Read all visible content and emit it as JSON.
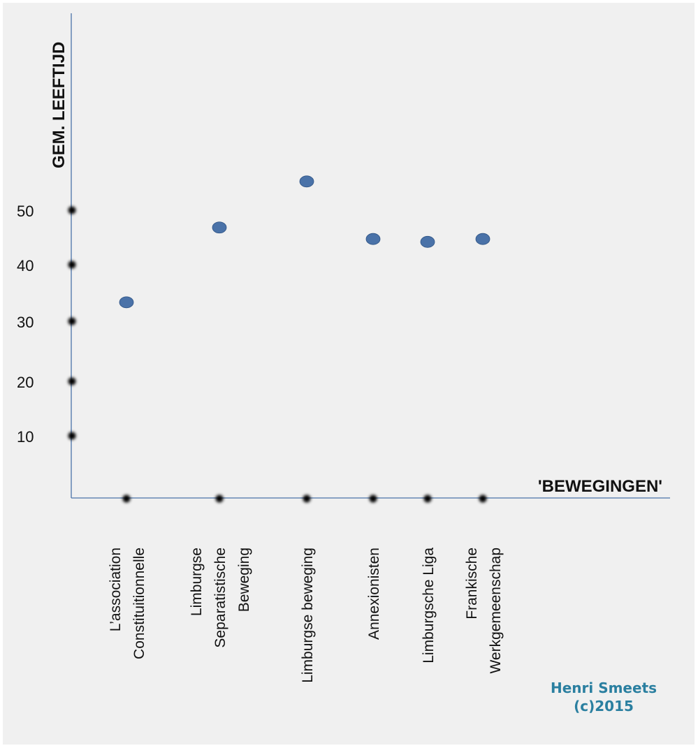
{
  "chart_data": {
    "type": "scatter",
    "title": "",
    "ylabel": "GEM. LEEFTIJD",
    "xlabel": "'BEWEGINGEN'",
    "ylim": [
      0,
      65
    ],
    "yticks": [
      "10",
      "20",
      "30",
      "40",
      "50"
    ],
    "categories": [
      [
        "L’association",
        "Constituitionnelle"
      ],
      [
        "Limburgse",
        "Separatistische",
        "Beweging"
      ],
      [
        "Limburgse beweging"
      ],
      [
        "Annexionisten"
      ],
      [
        "Limburgsche Liga"
      ],
      [
        "Frankische",
        "Werkgemeenschap"
      ]
    ],
    "values": [
      34,
      47,
      55,
      45,
      44.5,
      45
    ],
    "marker_color": "#4a72a8",
    "axis_color": "#4a72a8",
    "grid": false,
    "legend": "none"
  },
  "credit": {
    "line1": "Henri Smeets",
    "line2": "(c)2015"
  }
}
